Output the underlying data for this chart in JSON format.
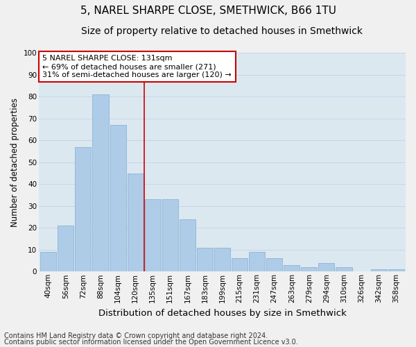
{
  "title": "5, NAREL SHARPE CLOSE, SMETHWICK, B66 1TU",
  "subtitle": "Size of property relative to detached houses in Smethwick",
  "xlabel": "Distribution of detached houses by size in Smethwick",
  "ylabel": "Number of detached properties",
  "categories": [
    "40sqm",
    "56sqm",
    "72sqm",
    "88sqm",
    "104sqm",
    "120sqm",
    "135sqm",
    "151sqm",
    "167sqm",
    "183sqm",
    "199sqm",
    "215sqm",
    "231sqm",
    "247sqm",
    "263sqm",
    "279sqm",
    "294sqm",
    "310sqm",
    "326sqm",
    "342sqm",
    "358sqm"
  ],
  "values": [
    9,
    21,
    57,
    81,
    67,
    45,
    33,
    33,
    24,
    11,
    11,
    6,
    9,
    6,
    3,
    2,
    4,
    2,
    0,
    1,
    1
  ],
  "bar_color": "#aecce8",
  "bar_edge_color": "#8ab4d4",
  "vline_x": 5.5,
  "vline_color": "#cc0000",
  "annotation_line1": "5 NAREL SHARPE CLOSE: 131sqm",
  "annotation_line2": "← 69% of detached houses are smaller (271)",
  "annotation_line3": "31% of semi-detached houses are larger (120) →",
  "annotation_box_color": "#ffffff",
  "annotation_box_edge": "#cc0000",
  "ylim": [
    0,
    100
  ],
  "yticks": [
    0,
    10,
    20,
    30,
    40,
    50,
    60,
    70,
    80,
    90,
    100
  ],
  "grid_color": "#c8d4e8",
  "bg_color": "#dce8f0",
  "fig_bg_color": "#f0f0f0",
  "footer1": "Contains HM Land Registry data © Crown copyright and database right 2024.",
  "footer2": "Contains public sector information licensed under the Open Government Licence v3.0.",
  "title_fontsize": 11,
  "subtitle_fontsize": 10,
  "xlabel_fontsize": 9.5,
  "ylabel_fontsize": 8.5,
  "tick_fontsize": 7.5,
  "annotation_fontsize": 8,
  "footer_fontsize": 7
}
